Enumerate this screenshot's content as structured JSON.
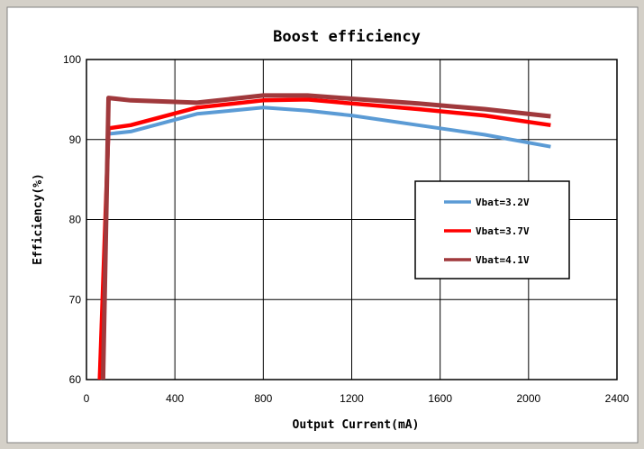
{
  "chart_data": {
    "type": "line",
    "title": "Boost efficiency",
    "xlabel": "Output Current(mA)",
    "ylabel": "Efficiency(%)",
    "xlim": [
      0,
      2400
    ],
    "ylim": [
      60,
      100
    ],
    "xticks": [
      0,
      400,
      800,
      1200,
      1600,
      2000,
      2400
    ],
    "yticks": [
      60,
      70,
      80,
      90,
      100
    ],
    "grid": true,
    "legend_position": "right",
    "series": [
      {
        "name": "Vbat=3.2V",
        "color": "#5b9bd5",
        "x": [
          60,
          100,
          200,
          500,
          800,
          1000,
          1200,
          1500,
          1800,
          2100
        ],
        "y": [
          60,
          90.7,
          91.0,
          93.2,
          94.0,
          93.6,
          93.0,
          91.8,
          90.6,
          89.1
        ]
      },
      {
        "name": "Vbat=3.7V",
        "color": "#ff0000",
        "x": [
          60,
          100,
          200,
          500,
          800,
          1000,
          1200,
          1500,
          1800,
          2100
        ],
        "y": [
          60,
          91.4,
          91.8,
          94.0,
          94.9,
          95.0,
          94.5,
          93.8,
          93.0,
          91.8
        ]
      },
      {
        "name": "Vbat=4.1V",
        "color": "#a0393c",
        "x": [
          75,
          100,
          200,
          500,
          800,
          1000,
          1200,
          1500,
          1800,
          2100
        ],
        "y": [
          60,
          95.2,
          94.9,
          94.6,
          95.5,
          95.5,
          95.1,
          94.5,
          93.8,
          92.9
        ]
      }
    ]
  }
}
